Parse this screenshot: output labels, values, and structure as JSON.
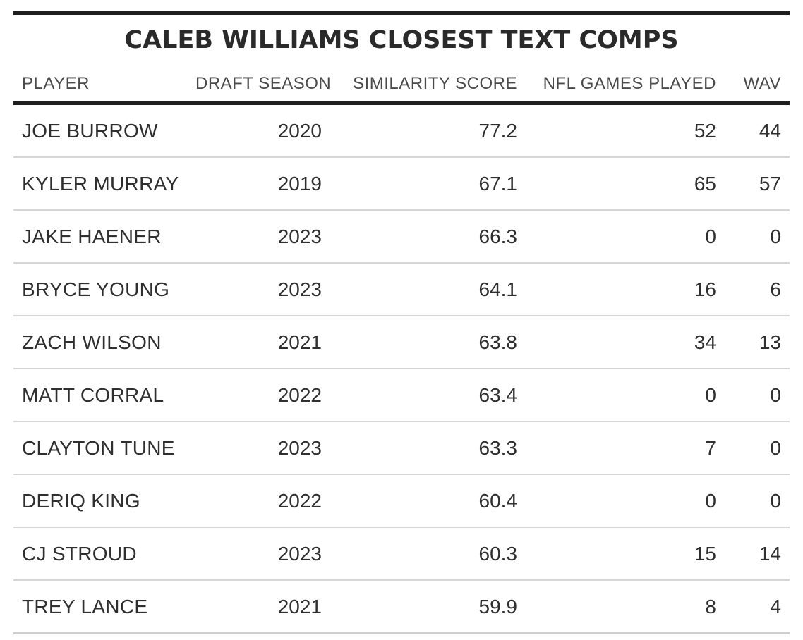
{
  "chart_data": {
    "type": "table",
    "title": "CALEB WILLIAMS CLOSEST TEXT COMPS",
    "columns": [
      "PLAYER",
      "DRAFT SEASON",
      "SIMILARITY SCORE",
      "NFL GAMES PLAYED",
      "WAV"
    ],
    "rows": [
      [
        "JOE BURROW",
        "2020",
        "77.2",
        "52",
        "44"
      ],
      [
        "KYLER MURRAY",
        "2019",
        "67.1",
        "65",
        "57"
      ],
      [
        "JAKE HAENER",
        "2023",
        "66.3",
        "0",
        "0"
      ],
      [
        "BRYCE YOUNG",
        "2023",
        "64.1",
        "16",
        "6"
      ],
      [
        "ZACH WILSON",
        "2021",
        "63.8",
        "34",
        "13"
      ],
      [
        "MATT CORRAL",
        "2022",
        "63.4",
        "0",
        "0"
      ],
      [
        "CLAYTON TUNE",
        "2023",
        "63.3",
        "7",
        "0"
      ],
      [
        "DERIQ KING",
        "2022",
        "60.4",
        "0",
        "0"
      ],
      [
        "CJ STROUD",
        "2023",
        "60.3",
        "15",
        "14"
      ],
      [
        "TREY LANCE",
        "2021",
        "59.9",
        "8",
        "4"
      ]
    ]
  }
}
